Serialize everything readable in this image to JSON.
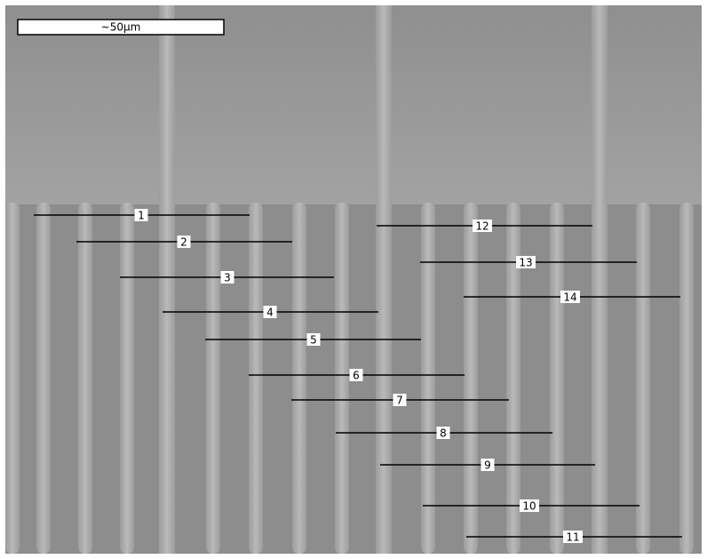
{
  "scale_bar": {
    "label": "~50μm"
  },
  "measurements": [
    {
      "label": "1"
    },
    {
      "label": "2"
    },
    {
      "label": "3"
    },
    {
      "label": "4"
    },
    {
      "label": "5"
    },
    {
      "label": "6"
    },
    {
      "label": "7"
    },
    {
      "label": "8"
    },
    {
      "label": "9"
    },
    {
      "label": "10"
    },
    {
      "label": "11"
    },
    {
      "label": "12"
    },
    {
      "label": "13"
    },
    {
      "label": "14"
    }
  ]
}
